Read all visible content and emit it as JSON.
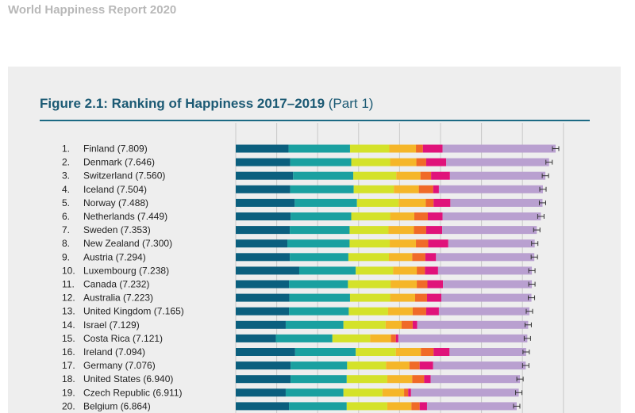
{
  "header": {
    "report_title": "World Happiness Report 2020"
  },
  "figure": {
    "title_bold": "Figure 2.1: Ranking of Happiness 2017–2019",
    "title_part": "(Part 1)"
  },
  "colors": {
    "segments": [
      "#0b5f7e",
      "#1aa0a0",
      "#d4e22a",
      "#f5b629",
      "#f06a28",
      "#e0137a",
      "#b9a0d0"
    ],
    "error_bar": "#333333",
    "grid": "#c9c9c9",
    "title": "#1c5a74"
  },
  "chart_data": {
    "type": "bar",
    "orientation": "horizontal",
    "stacked": true,
    "xlim": [
      0,
      8
    ],
    "grid": true,
    "error_bars": true,
    "categories": [
      {
        "rank": "1.",
        "label": "Finland (7.809)"
      },
      {
        "rank": "2.",
        "label": "Denmark (7.646)"
      },
      {
        "rank": "3.",
        "label": "Switzerland (7.560)"
      },
      {
        "rank": "4.",
        "label": "Iceland (7.504)"
      },
      {
        "rank": "5.",
        "label": "Norway (7.488)"
      },
      {
        "rank": "6.",
        "label": "Netherlands (7.449)"
      },
      {
        "rank": "7.",
        "label": "Sweden (7.353)"
      },
      {
        "rank": "8.",
        "label": "New Zealand (7.300)"
      },
      {
        "rank": "9.",
        "label": "Austria (7.294)"
      },
      {
        "rank": "10.",
        "label": "Luxembourg (7.238)"
      },
      {
        "rank": "11.",
        "label": "Canada (7.232)"
      },
      {
        "rank": "12.",
        "label": "Australia (7.223)"
      },
      {
        "rank": "13.",
        "label": "United Kingdom (7.165)"
      },
      {
        "rank": "14.",
        "label": "Israel (7.129)"
      },
      {
        "rank": "15.",
        "label": "Costa Rica (7.121)"
      },
      {
        "rank": "16.",
        "label": "Ireland (7.094)"
      },
      {
        "rank": "17.",
        "label": "Germany (7.076)"
      },
      {
        "rank": "18.",
        "label": "United States (6.940)"
      },
      {
        "rank": "19.",
        "label": "Czech Republic (6.911)"
      },
      {
        "rank": "20.",
        "label": "Belgium (6.864)"
      }
    ],
    "totals": [
      7.809,
      7.646,
      7.56,
      7.504,
      7.488,
      7.449,
      7.353,
      7.3,
      7.294,
      7.238,
      7.232,
      7.223,
      7.165,
      7.129,
      7.121,
      7.094,
      7.076,
      6.94,
      6.911,
      6.864
    ],
    "segments": [
      [
        1.29,
        1.5,
        0.96,
        0.65,
        0.17,
        0.48,
        2.76
      ],
      [
        1.33,
        1.49,
        0.95,
        0.64,
        0.24,
        0.49,
        2.51
      ],
      [
        1.4,
        1.47,
        1.05,
        0.59,
        0.26,
        0.46,
        2.33
      ],
      [
        1.33,
        1.55,
        0.98,
        0.61,
        0.35,
        0.14,
        2.54
      ],
      [
        1.44,
        1.52,
        1.02,
        0.66,
        0.19,
        0.41,
        2.25
      ],
      [
        1.34,
        1.48,
        0.95,
        0.59,
        0.33,
        0.36,
        2.4
      ],
      [
        1.32,
        1.46,
        0.95,
        0.62,
        0.3,
        0.39,
        2.31
      ],
      [
        1.26,
        1.52,
        0.98,
        0.64,
        0.3,
        0.49,
        2.11
      ],
      [
        1.32,
        1.43,
        0.99,
        0.57,
        0.32,
        0.26,
        2.4
      ],
      [
        1.55,
        1.38,
        0.91,
        0.58,
        0.2,
        0.32,
        2.29
      ],
      [
        1.3,
        1.44,
        1.04,
        0.64,
        0.26,
        0.38,
        2.17
      ],
      [
        1.31,
        1.48,
        0.98,
        0.61,
        0.29,
        0.35,
        2.2
      ],
      [
        1.3,
        1.46,
        0.96,
        0.6,
        0.33,
        0.31,
        2.21
      ],
      [
        1.22,
        1.41,
        1.03,
        0.39,
        0.27,
        0.11,
        2.71
      ],
      [
        0.98,
        1.38,
        0.92,
        0.51,
        0.12,
        0.06,
        3.15
      ],
      [
        1.45,
        1.48,
        0.98,
        0.61,
        0.31,
        0.39,
        1.87
      ],
      [
        1.34,
        1.38,
        0.95,
        0.57,
        0.25,
        0.33,
        2.26
      ],
      [
        1.34,
        1.37,
        0.99,
        0.61,
        0.29,
        0.16,
        2.18
      ],
      [
        1.22,
        1.41,
        0.95,
        0.53,
        0.1,
        0.07,
        2.63
      ],
      [
        1.3,
        1.41,
        0.99,
        0.59,
        0.2,
        0.18,
        2.19
      ]
    ]
  }
}
